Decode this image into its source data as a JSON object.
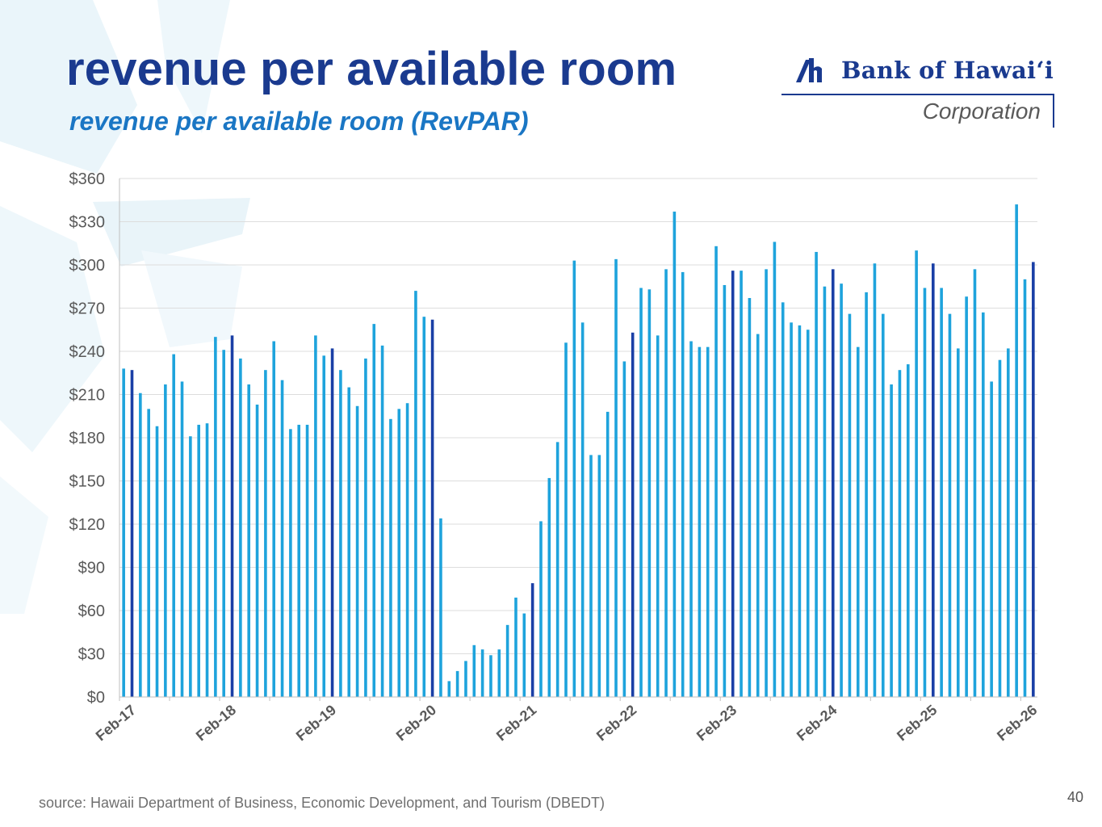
{
  "slide": {
    "title": "revenue per available room",
    "subtitle": "revenue per available room (RevPAR)",
    "source": "source: Hawaii Department of Business, Economic Development, and Tourism (DBEDT)",
    "page_number": "40"
  },
  "logo": {
    "name": "Bank of Hawaiʻi",
    "subtitle": "Corporation",
    "mark_icon": "bank-of-hawaii-mark-icon"
  },
  "colors": {
    "bar": "#1ea3dc",
    "bar_highlight": "#1a3fa6",
    "title": "#1a3a8f",
    "subtitle": "#1a76c4",
    "grid": "#dddddd",
    "axis_text": "#595959"
  },
  "chart_data": {
    "type": "bar",
    "title": "revenue per available room (RevPAR)",
    "xlabel": "",
    "ylabel": "",
    "ylim": [
      0,
      360
    ],
    "yticks": [
      "$0",
      "$30",
      "$60",
      "$90",
      "$120",
      "$150",
      "$180",
      "$210",
      "$240",
      "$270",
      "$300",
      "$330",
      "$360"
    ],
    "x_tick_labels": [
      "Feb-17",
      "Feb-18",
      "Feb-19",
      "Feb-20",
      "Feb-21",
      "Feb-22",
      "Feb-23",
      "Feb-24",
      "Feb-25",
      "Feb-26"
    ],
    "grid": true,
    "legend": "none",
    "series": [
      {
        "name": "RevPAR",
        "start": "Feb-17",
        "frequency": "monthly",
        "note": "bars for Feb of each year highlighted in darker blue",
        "values": [
          228,
          227,
          211,
          200,
          188,
          217,
          238,
          219,
          181,
          189,
          190,
          250,
          241,
          251,
          235,
          217,
          203,
          227,
          247,
          220,
          186,
          189,
          189,
          251,
          237,
          242,
          227,
          215,
          202,
          235,
          259,
          244,
          193,
          200,
          204,
          282,
          264,
          262,
          124,
          11,
          18,
          25,
          36,
          33,
          29,
          33,
          50,
          69,
          58,
          79,
          122,
          152,
          177,
          246,
          303,
          260,
          168,
          168,
          198,
          304,
          233,
          253,
          284,
          283,
          251,
          297,
          337,
          295,
          247,
          243,
          243,
          313,
          286,
          296,
          296,
          277,
          252,
          297,
          316,
          274,
          260,
          258,
          255,
          309,
          285,
          297,
          287,
          266,
          243,
          281,
          301,
          266,
          217,
          227,
          231,
          310,
          284,
          301,
          284,
          266,
          242,
          278,
          297,
          267,
          219,
          234,
          242,
          342,
          290,
          302
        ]
      }
    ]
  }
}
